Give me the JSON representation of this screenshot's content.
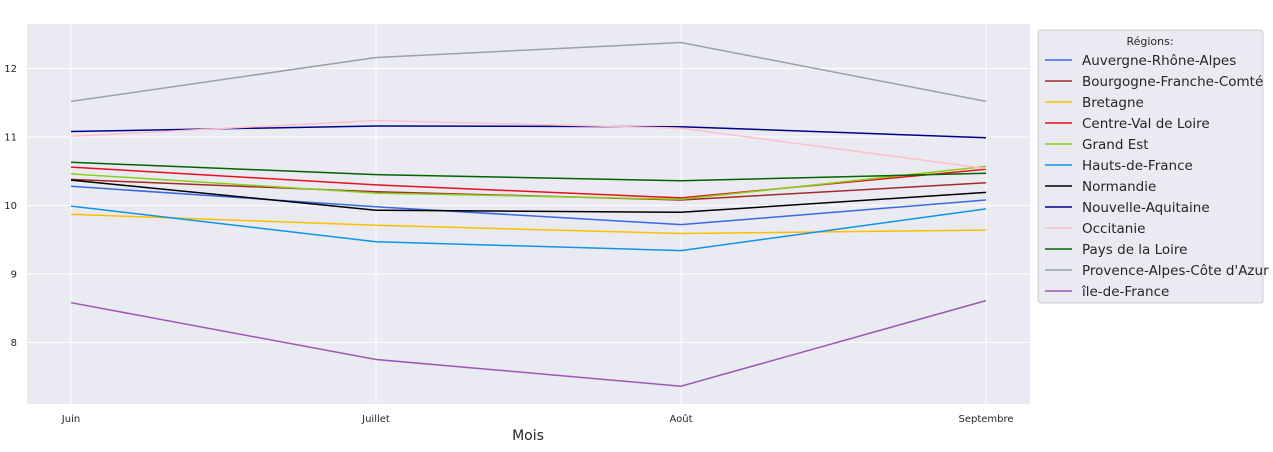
{
  "chart_data": {
    "type": "line",
    "x": [
      "Juin",
      "Juillet",
      "Août",
      "Septembre"
    ],
    "xlabel": "Mois",
    "ylabel": "",
    "ylim": [
      7.1,
      12.65
    ],
    "yticks": [
      8,
      9,
      10,
      11,
      12
    ],
    "grid": true,
    "legend": {
      "title": "Régions:",
      "placement": "outside-right"
    },
    "series": [
      {
        "name": "Auvergne-Rhône-Alpes",
        "color": "#3c67e3",
        "values": [
          10.28,
          9.98,
          9.72,
          10.08
        ]
      },
      {
        "name": "Bourgogne-Franche-Comté",
        "color": "#a52a2a",
        "values": [
          10.38,
          10.2,
          10.08,
          10.33
        ]
      },
      {
        "name": "Bretagne",
        "color": "#ffbf00",
        "values": [
          9.87,
          9.71,
          9.59,
          9.64
        ]
      },
      {
        "name": "Centre-Val de Loire",
        "color": "#e8111d",
        "values": [
          10.56,
          10.3,
          10.11,
          10.53
        ]
      },
      {
        "name": "Grand Est",
        "color": "#88d018",
        "values": [
          10.46,
          10.18,
          10.09,
          10.57
        ]
      },
      {
        "name": "Hauts-de-France",
        "color": "#1192e8",
        "values": [
          9.99,
          9.47,
          9.34,
          9.95
        ]
      },
      {
        "name": "Normandie",
        "color": "#000000",
        "values": [
          10.37,
          9.93,
          9.9,
          10.19
        ]
      },
      {
        "name": "Nouvelle-Aquitaine",
        "color": "#00008b",
        "values": [
          11.08,
          11.16,
          11.15,
          10.99
        ]
      },
      {
        "name": "Occitanie",
        "color": "#ffc0cb",
        "values": [
          11.01,
          11.24,
          11.13,
          10.54
        ]
      },
      {
        "name": "Pays de la Loire",
        "color": "#006400",
        "values": [
          10.63,
          10.45,
          10.36,
          10.47
        ]
      },
      {
        "name": "Provence-Alpes-Côte d'Azur",
        "color": "#9aa0a6",
        "values": [
          11.52,
          12.16,
          12.38,
          11.52
        ]
      },
      {
        "name": "île-de-France",
        "color": "#9b59b6",
        "values": [
          8.58,
          7.75,
          7.36,
          8.61
        ]
      }
    ]
  }
}
